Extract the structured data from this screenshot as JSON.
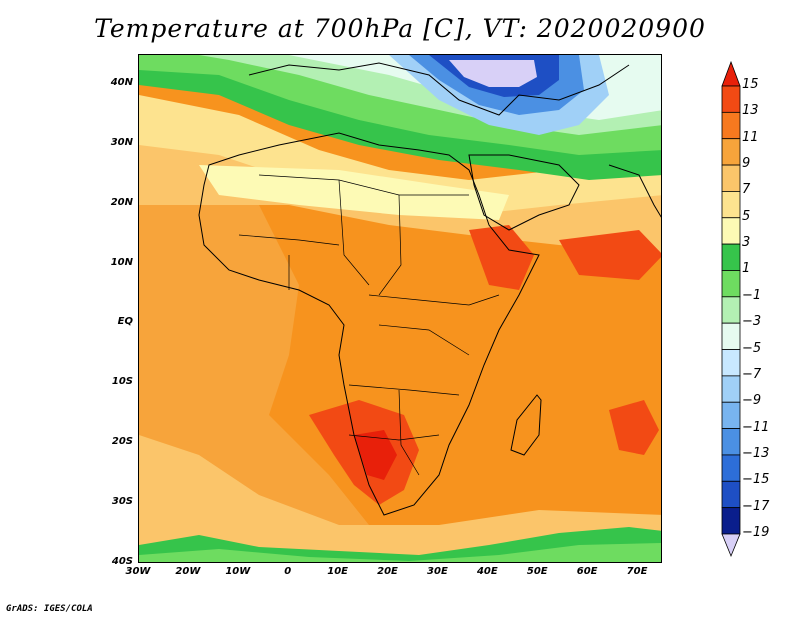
{
  "title": "Temperature at 700hPa [C], VT: 2020020900",
  "credit": "GrADS: IGES/COLA",
  "map": {
    "projection": "lat-lon",
    "lon_range": [
      -30,
      75
    ],
    "lat_range": [
      -40,
      45
    ],
    "lat_ticks": [
      {
        "value": 40,
        "label": "40N"
      },
      {
        "value": 30,
        "label": "30N"
      },
      {
        "value": 20,
        "label": "20N"
      },
      {
        "value": 10,
        "label": "10N"
      },
      {
        "value": 0,
        "label": "EQ"
      },
      {
        "value": -10,
        "label": "10S"
      },
      {
        "value": -20,
        "label": "20S"
      },
      {
        "value": -30,
        "label": "30S"
      },
      {
        "value": -40,
        "label": "40S"
      }
    ],
    "lon_ticks": [
      {
        "value": -30,
        "label": "30W"
      },
      {
        "value": -20,
        "label": "20W"
      },
      {
        "value": -10,
        "label": "10W"
      },
      {
        "value": 0,
        "label": "0"
      },
      {
        "value": 10,
        "label": "10E"
      },
      {
        "value": 20,
        "label": "20E"
      },
      {
        "value": 30,
        "label": "30E"
      },
      {
        "value": 40,
        "label": "40E"
      },
      {
        "value": 50,
        "label": "50E"
      },
      {
        "value": 60,
        "label": "60E"
      },
      {
        "value": 70,
        "label": "70E"
      }
    ]
  },
  "colorbar": {
    "levels": [
      15,
      13,
      11,
      9,
      7,
      5,
      3,
      1,
      -1,
      -3,
      -5,
      -7,
      -9,
      -11,
      -13,
      -15,
      -17,
      -19
    ],
    "labels": [
      "15",
      "13",
      "11",
      "9",
      "7",
      "5",
      "3",
      "1",
      "−1",
      "−3",
      "−5",
      "−7",
      "−9",
      "−11",
      "−13",
      "−15",
      "−17",
      "−19"
    ],
    "colors": [
      "#e8200a",
      "#f24a14",
      "#f7791f",
      "#f7a43b",
      "#fbc56a",
      "#fde38f",
      "#fdfab5",
      "#36c44b",
      "#6edc60",
      "#b3f0b3",
      "#e6fbf0",
      "#c8e8ff",
      "#a0d0f7",
      "#78b4ef",
      "#4b90e3",
      "#2d6ed8",
      "#1e4fc4",
      "#0a1e8c",
      "#d8d0f7"
    ]
  }
}
